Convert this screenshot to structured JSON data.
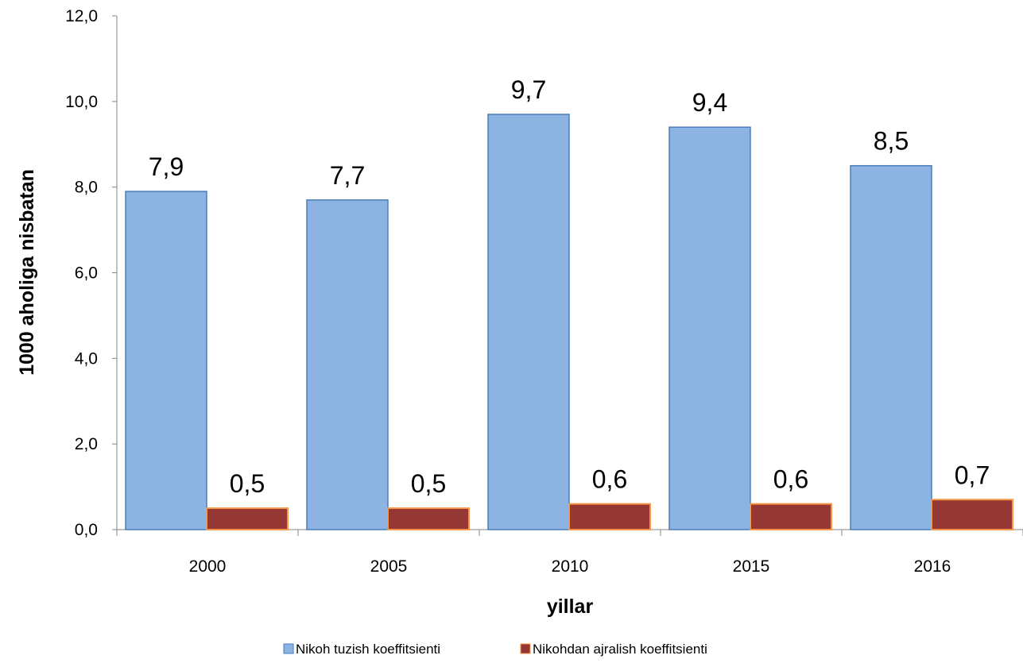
{
  "chart_data": {
    "type": "bar",
    "categories": [
      "2000",
      "2005",
      "2010",
      "2015",
      "2016"
    ],
    "series": [
      {
        "name": "Nikoh tuzish koeffitsienti",
        "values": [
          7.9,
          7.7,
          9.7,
          9.4,
          8.5
        ],
        "labels": [
          "7,9",
          "7,7",
          "9,7",
          "9,4",
          "8,5"
        ],
        "fill": "#8db3e2",
        "stroke": "#4a7ebb"
      },
      {
        "name": "Nikohdan ajralish koeffitsienti",
        "values": [
          0.5,
          0.5,
          0.6,
          0.6,
          0.7
        ],
        "labels": [
          "0,5",
          "0,5",
          "0,6",
          "0,6",
          "0,7"
        ],
        "fill": "#953735",
        "stroke": "#f79646"
      }
    ],
    "xlabel": "yillar",
    "ylabel": "1000 aholiga nisbatan",
    "ylim": [
      0,
      12
    ],
    "yticks": [
      0,
      2,
      4,
      6,
      8,
      10,
      12
    ],
    "ytick_labels": [
      "0,0",
      "2,0",
      "4,0",
      "6,0",
      "8,0",
      "10,0",
      "12,0"
    ],
    "grid": false,
    "legend_position": "bottom"
  }
}
